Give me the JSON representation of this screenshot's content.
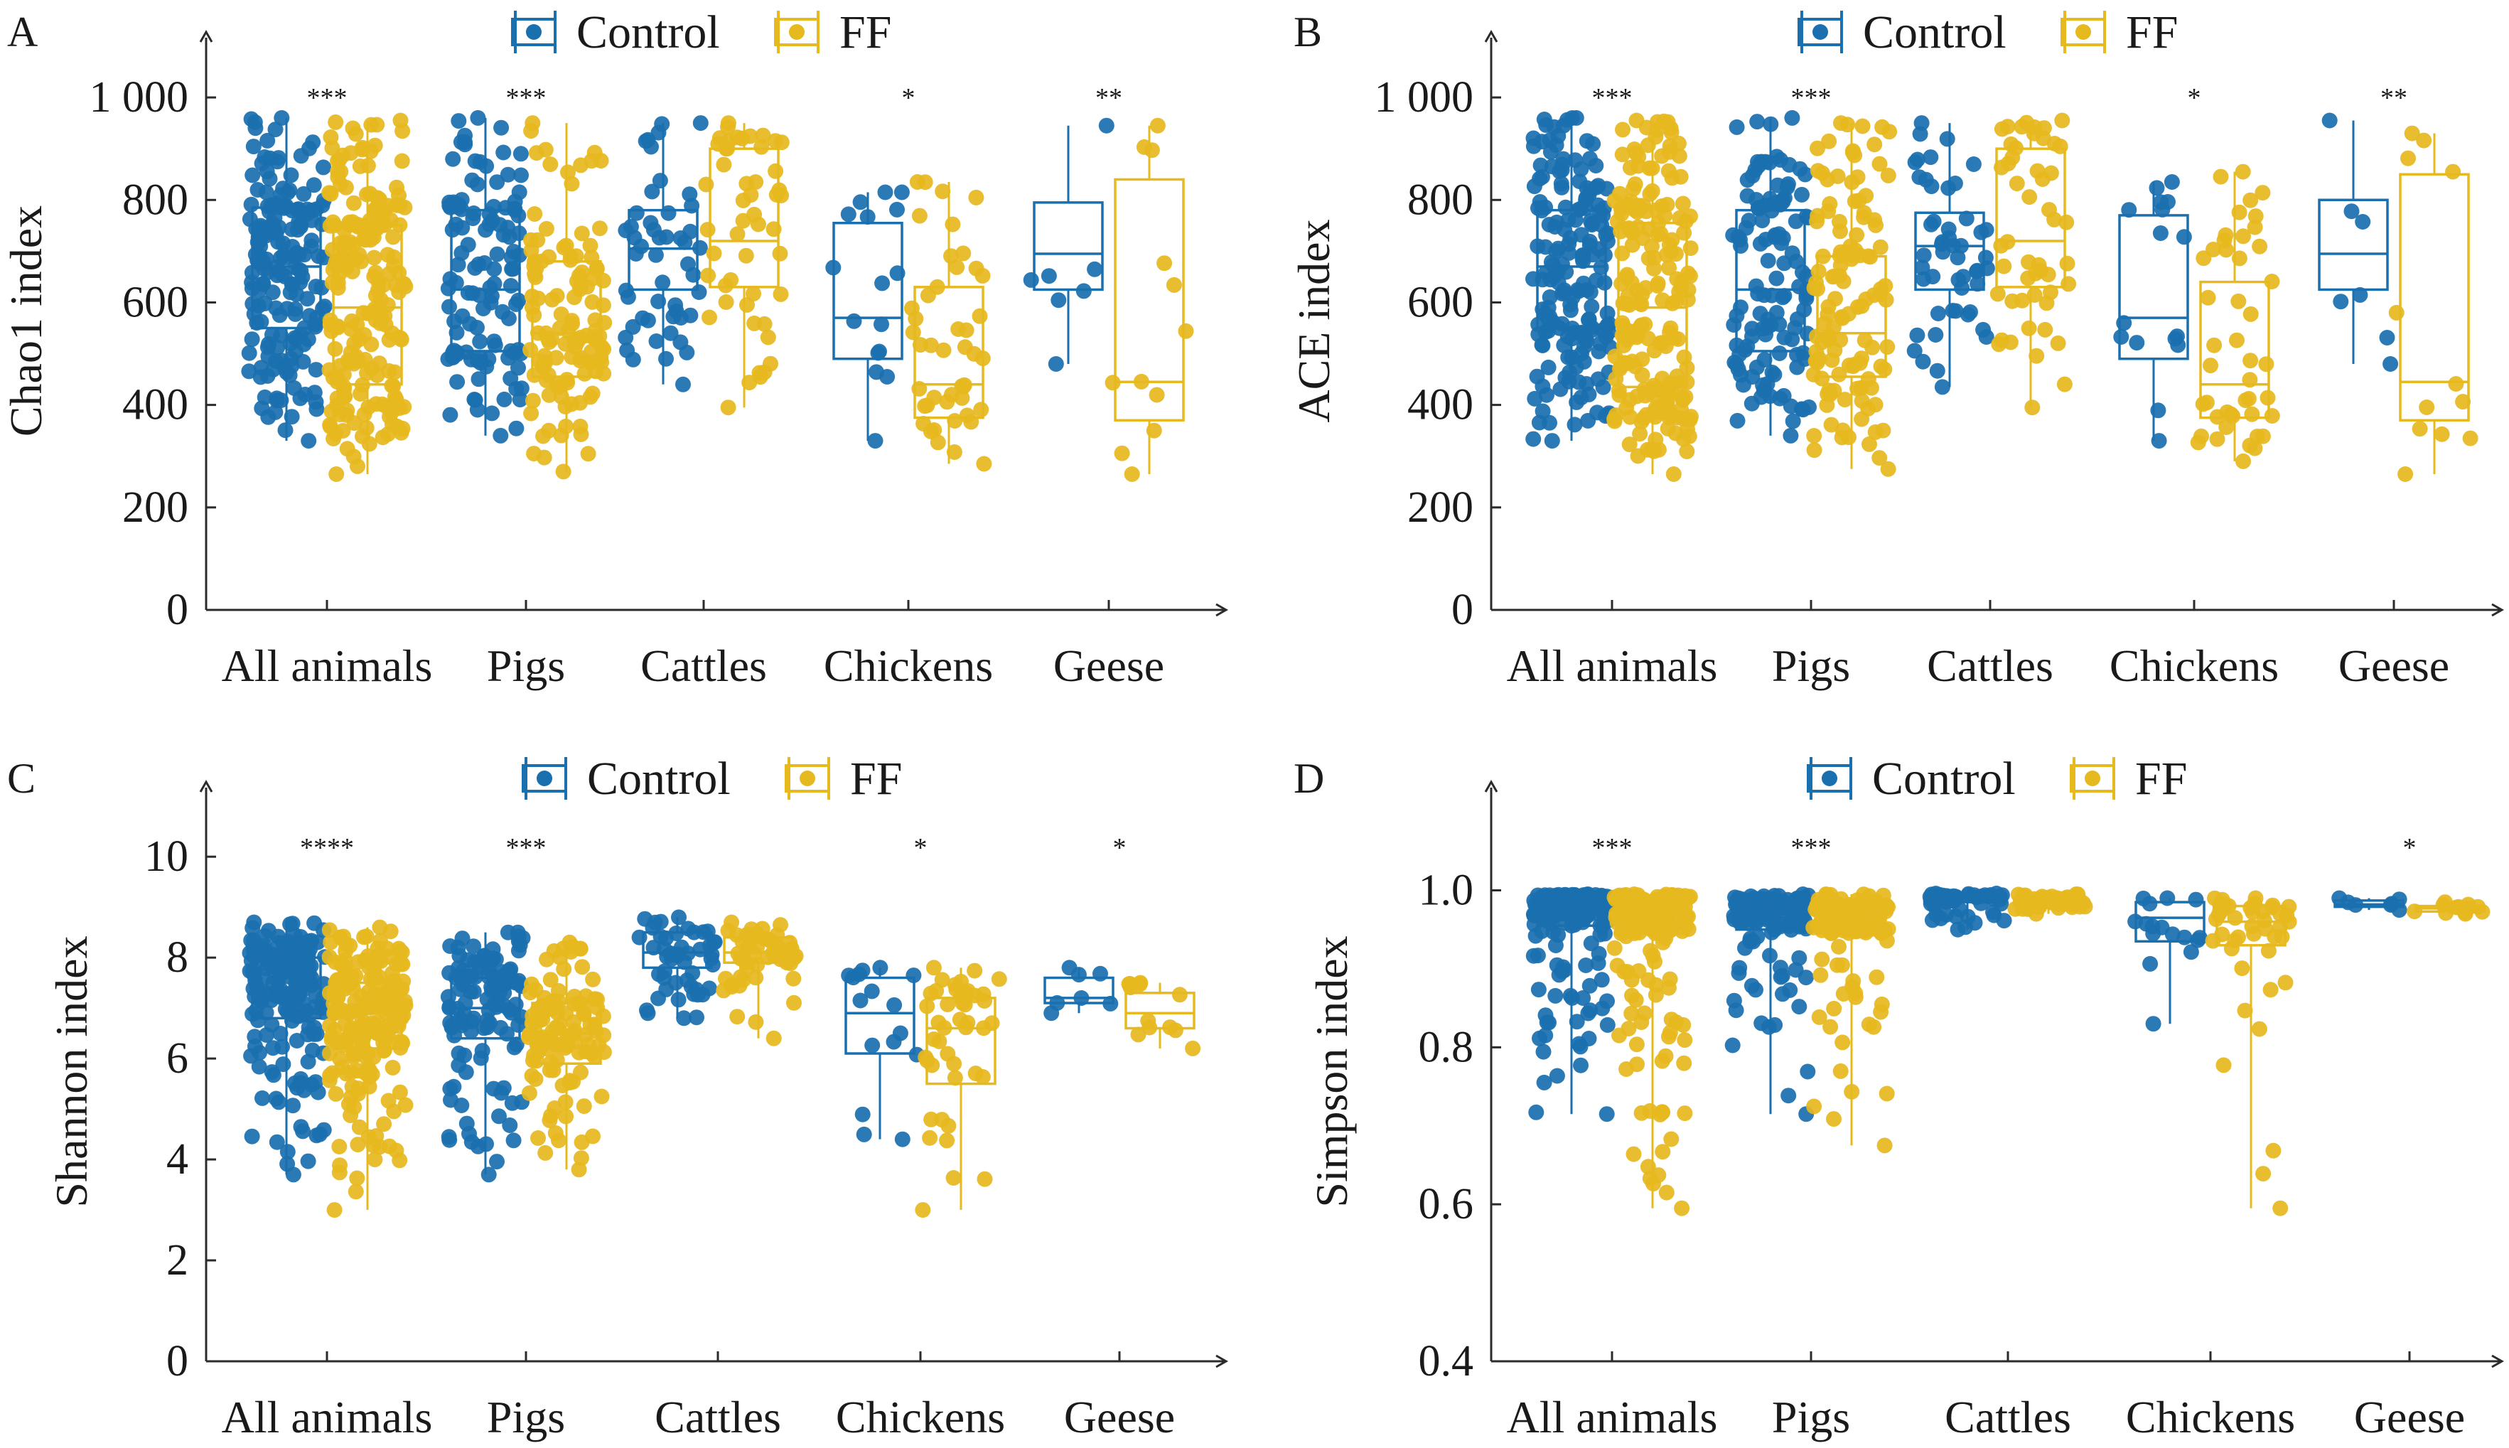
{
  "colors": {
    "Control": "#1a6faf",
    "FF": "#e6b91e"
  },
  "legend": [
    "Control",
    "FF"
  ],
  "chart_data": [
    {
      "type": "box",
      "panel": "A",
      "ylabel": "Chao1 index",
      "xlabel": "",
      "ylim": [
        0,
        1100
      ],
      "yticks": [
        0,
        200,
        400,
        600,
        800,
        1000
      ],
      "ytick_labels": [
        "0",
        "200",
        "400",
        "600",
        "800",
        "1 000"
      ],
      "categories": [
        "All animals",
        "Pigs",
        "Cattles",
        "Chickens",
        "Geese"
      ],
      "significance": [
        "***",
        "***",
        "",
        "*",
        "**"
      ],
      "series": [
        {
          "name": "Control",
          "boxes": [
            {
              "min": 330,
              "q1": 550,
              "median": 670,
              "q3": 785,
              "max": 960,
              "n": 180
            },
            {
              "min": 340,
              "q1": 505,
              "median": 625,
              "q3": 780,
              "max": 960,
              "n": 120
            },
            {
              "min": 440,
              "q1": 625,
              "median": 705,
              "q3": 780,
              "max": 950,
              "n": 50
            },
            {
              "min": 330,
              "q1": 490,
              "median": 570,
              "q3": 755,
              "max": 815,
              "n": 16
            },
            {
              "min": 480,
              "q1": 625,
              "median": 695,
              "q3": 795,
              "max": 945,
              "n": 7
            }
          ]
        },
        {
          "name": "FF",
          "boxes": [
            {
              "min": 265,
              "q1": 440,
              "median": 590,
              "q3": 750,
              "max": 955,
              "n": 200
            },
            {
              "min": 270,
              "q1": 455,
              "median": 540,
              "q3": 680,
              "max": 950,
              "n": 120
            },
            {
              "min": 395,
              "q1": 630,
              "median": 720,
              "q3": 900,
              "max": 950,
              "n": 50
            },
            {
              "min": 285,
              "q1": 375,
              "median": 440,
              "q3": 630,
              "max": 835,
              "n": 45
            },
            {
              "min": 265,
              "q1": 370,
              "median": 445,
              "q3": 840,
              "max": 945,
              "n": 12
            }
          ]
        }
      ]
    },
    {
      "type": "box",
      "panel": "B",
      "ylabel": "ACE index",
      "xlabel": "",
      "ylim": [
        0,
        1100
      ],
      "yticks": [
        0,
        200,
        400,
        600,
        800,
        1000
      ],
      "ytick_labels": [
        "0",
        "200",
        "400",
        "600",
        "800",
        "1 000"
      ],
      "categories": [
        "All animals",
        "Pigs",
        "Cattles",
        "Chickens",
        "Geese"
      ],
      "significance": [
        "***",
        "***",
        "",
        "*",
        "**"
      ],
      "series": [
        {
          "name": "Control",
          "boxes": [
            {
              "min": 330,
              "q1": 550,
              "median": 670,
              "q3": 780,
              "max": 960,
              "n": 180
            },
            {
              "min": 340,
              "q1": 505,
              "median": 625,
              "q3": 780,
              "max": 960,
              "n": 120
            },
            {
              "min": 435,
              "q1": 625,
              "median": 710,
              "q3": 775,
              "max": 950,
              "n": 50
            },
            {
              "min": 330,
              "q1": 490,
              "median": 570,
              "q3": 770,
              "max": 835,
              "n": 16
            },
            {
              "min": 480,
              "q1": 625,
              "median": 695,
              "q3": 800,
              "max": 955,
              "n": 7
            }
          ]
        },
        {
          "name": "FF",
          "boxes": [
            {
              "min": 265,
              "q1": 435,
              "median": 590,
              "q3": 755,
              "max": 955,
              "n": 200
            },
            {
              "min": 275,
              "q1": 455,
              "median": 540,
              "q3": 690,
              "max": 950,
              "n": 120
            },
            {
              "min": 395,
              "q1": 630,
              "median": 720,
              "q3": 900,
              "max": 955,
              "n": 50
            },
            {
              "min": 290,
              "q1": 375,
              "median": 440,
              "q3": 640,
              "max": 855,
              "n": 45
            },
            {
              "min": 265,
              "q1": 370,
              "median": 445,
              "q3": 850,
              "max": 930,
              "n": 12
            }
          ]
        }
      ]
    },
    {
      "type": "box",
      "panel": "C",
      "ylabel": "Shannon index",
      "xlabel": "",
      "ylim": [
        0,
        11.2
      ],
      "yticks": [
        0,
        2,
        4,
        6,
        8,
        10
      ],
      "ytick_labels": [
        "0",
        "2",
        "4",
        "6",
        "8",
        "10"
      ],
      "categories": [
        "All animals",
        "Pigs",
        "Cattles",
        "Chickens",
        "Geese"
      ],
      "significance": [
        "****",
        "***",
        "",
        "*",
        "*"
      ],
      "series": [
        {
          "name": "Control",
          "boxes": [
            {
              "min": 3.7,
              "q1": 6.8,
              "median": 7.4,
              "q3": 8.0,
              "max": 8.7,
              "n": 180
            },
            {
              "min": 3.7,
              "q1": 6.4,
              "median": 7.0,
              "q3": 7.6,
              "max": 8.5,
              "n": 120
            },
            {
              "min": 6.8,
              "q1": 7.8,
              "median": 8.1,
              "q3": 8.5,
              "max": 8.8,
              "n": 50
            },
            {
              "min": 4.4,
              "q1": 6.1,
              "median": 6.9,
              "q3": 7.6,
              "max": 7.8,
              "n": 16
            },
            {
              "min": 6.9,
              "q1": 7.1,
              "median": 7.2,
              "q3": 7.6,
              "max": 7.8,
              "n": 7
            }
          ]
        },
        {
          "name": "FF",
          "boxes": [
            {
              "min": 3.0,
              "q1": 6.2,
              "median": 6.9,
              "q3": 7.5,
              "max": 8.6,
              "n": 200
            },
            {
              "min": 3.8,
              "q1": 5.9,
              "median": 6.5,
              "q3": 7.1,
              "max": 8.3,
              "n": 120
            },
            {
              "min": 6.4,
              "q1": 7.9,
              "median": 8.1,
              "q3": 8.4,
              "max": 8.7,
              "n": 50
            },
            {
              "min": 3.0,
              "q1": 5.5,
              "median": 6.6,
              "q3": 7.2,
              "max": 7.8,
              "n": 45
            },
            {
              "min": 6.2,
              "q1": 6.6,
              "median": 6.9,
              "q3": 7.3,
              "max": 7.5,
              "n": 12
            }
          ]
        }
      ]
    },
    {
      "type": "box",
      "panel": "D",
      "ylabel": "Simpson index",
      "xlabel": "",
      "ylim": [
        0.4,
        1.12
      ],
      "yticks": [
        0.4,
        0.6,
        0.8,
        1.0
      ],
      "ytick_labels": [
        "0.4",
        "0.6",
        "0.8",
        "1.0"
      ],
      "categories": [
        "All animals",
        "Pigs",
        "Cattles",
        "Chickens",
        "Geese"
      ],
      "significance": [
        "***",
        "***",
        "",
        "",
        "*"
      ],
      "series": [
        {
          "name": "Control",
          "boxes": [
            {
              "min": 0.715,
              "q1": 0.955,
              "median": 0.975,
              "q3": 0.99,
              "max": 0.995,
              "n": 180
            },
            {
              "min": 0.715,
              "q1": 0.95,
              "median": 0.97,
              "q3": 0.985,
              "max": 0.995,
              "n": 120
            },
            {
              "min": 0.95,
              "q1": 0.985,
              "median": 0.99,
              "q3": 0.993,
              "max": 0.996,
              "n": 50
            },
            {
              "min": 0.83,
              "q1": 0.935,
              "median": 0.965,
              "q3": 0.985,
              "max": 0.99,
              "n": 16
            },
            {
              "min": 0.975,
              "q1": 0.979,
              "median": 0.982,
              "q3": 0.987,
              "max": 0.99,
              "n": 7
            }
          ]
        },
        {
          "name": "FF",
          "boxes": [
            {
              "min": 0.595,
              "q1": 0.945,
              "median": 0.965,
              "q3": 0.985,
              "max": 0.995,
              "n": 200
            },
            {
              "min": 0.675,
              "q1": 0.945,
              "median": 0.96,
              "q3": 0.975,
              "max": 0.995,
              "n": 120
            },
            {
              "min": 0.97,
              "q1": 0.982,
              "median": 0.985,
              "q3": 0.99,
              "max": 0.995,
              "n": 50
            },
            {
              "min": 0.595,
              "q1": 0.93,
              "median": 0.96,
              "q3": 0.98,
              "max": 0.99,
              "n": 45
            },
            {
              "min": 0.97,
              "q1": 0.973,
              "median": 0.977,
              "q3": 0.98,
              "max": 0.985,
              "n": 12
            }
          ]
        }
      ]
    }
  ]
}
